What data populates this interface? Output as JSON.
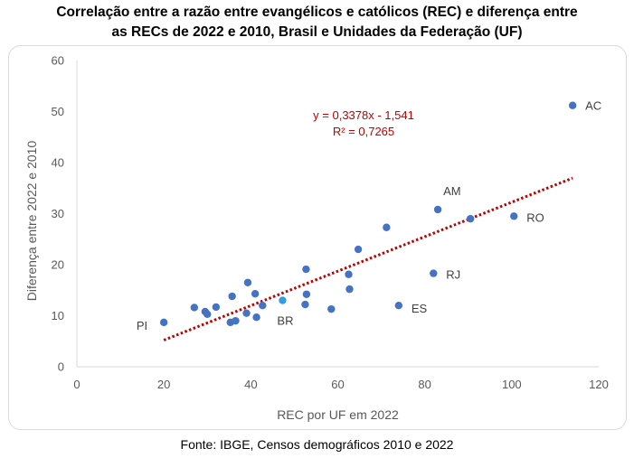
{
  "header": {
    "title_line1": "Correlação entre a razão entre evangélicos e católicos (REC) e diferença entre",
    "title_line2": "as RECs de 2022 e 2010, Brasil e Unidades da Federação (UF)"
  },
  "footer": {
    "source": "Fonte: IBGE, Censos demográficos 2010 e 2022"
  },
  "chart_data": {
    "type": "scatter",
    "xlabel": "REC por UF em 2022",
    "ylabel": "Diferença entre 2022 e 2010",
    "xlim": [
      0,
      120
    ],
    "ylim": [
      0,
      60
    ],
    "xticks": [
      0,
      20,
      40,
      60,
      80,
      100,
      120
    ],
    "yticks": [
      0,
      10,
      20,
      30,
      40,
      50,
      60
    ],
    "grid": false,
    "marker_color": "#4472c4",
    "highlight_color": "#2e9fe6",
    "trend_color": "#c00000",
    "trendline": {
      "slope": 0.3378,
      "intercept": -1.541,
      "x_range": [
        20,
        114
      ],
      "equation": "y = 0,3378x - 1,541",
      "r2": "R² = 0,7265"
    },
    "points": [
      {
        "x": 20,
        "y": 8.7,
        "label": "PI"
      },
      {
        "x": 27,
        "y": 11.6
      },
      {
        "x": 29.5,
        "y": 10.8
      },
      {
        "x": 30,
        "y": 10.3
      },
      {
        "x": 32,
        "y": 11.7
      },
      {
        "x": 35.3,
        "y": 8.7
      },
      {
        "x": 35.7,
        "y": 13.8
      },
      {
        "x": 36.5,
        "y": 9
      },
      {
        "x": 39,
        "y": 10.5
      },
      {
        "x": 39.3,
        "y": 16.5
      },
      {
        "x": 41,
        "y": 14.3
      },
      {
        "x": 41.3,
        "y": 9.7
      },
      {
        "x": 42.7,
        "y": 12
      },
      {
        "x": 47.3,
        "y": 13,
        "label": "BR",
        "highlight": true
      },
      {
        "x": 52.5,
        "y": 12.2
      },
      {
        "x": 52.7,
        "y": 19.1
      },
      {
        "x": 52.8,
        "y": 14.2
      },
      {
        "x": 58.5,
        "y": 11.3
      },
      {
        "x": 62.5,
        "y": 18.1
      },
      {
        "x": 62.7,
        "y": 15.2
      },
      {
        "x": 64.7,
        "y": 23
      },
      {
        "x": 71.2,
        "y": 27.3
      },
      {
        "x": 74,
        "y": 12,
        "label": "ES"
      },
      {
        "x": 82,
        "y": 18.3,
        "label": "RJ"
      },
      {
        "x": 83,
        "y": 30.8,
        "label": "AM"
      },
      {
        "x": 90.5,
        "y": 29
      },
      {
        "x": 100.5,
        "y": 29.5,
        "label": "RO"
      },
      {
        "x": 114,
        "y": 51.2,
        "label": "AC"
      }
    ]
  }
}
